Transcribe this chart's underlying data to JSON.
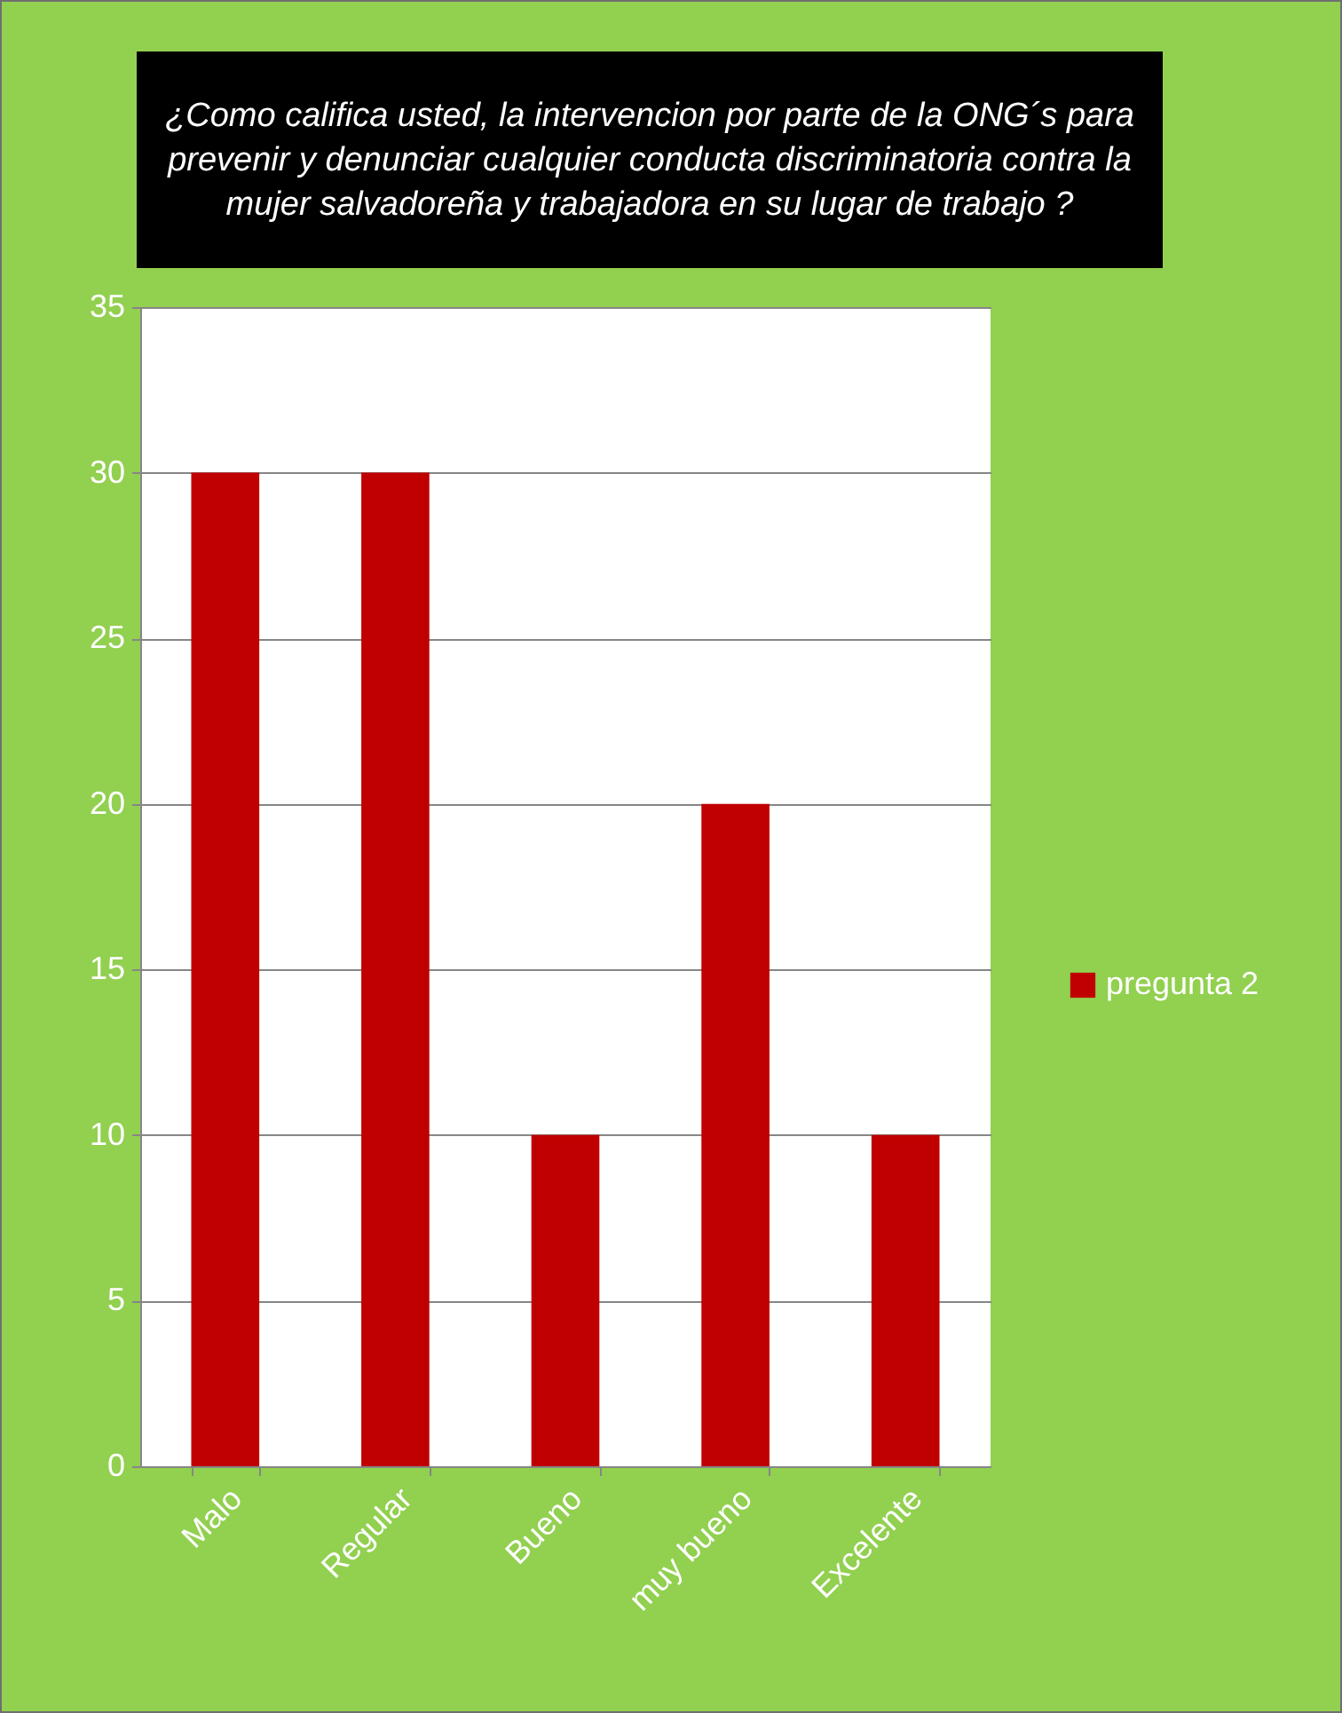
{
  "chart_data": {
    "type": "bar",
    "title": "¿Como califica usted, la intervencion por parte de la ONG´s para prevenir y denunciar cualquier conducta discriminatoria contra la mujer salvadoreña y trabajadora en su lugar de trabajo ?",
    "categories": [
      "Malo",
      "Regular",
      "Bueno",
      "muy bueno",
      "Excelente"
    ],
    "series": [
      {
        "name": "pregunta 2",
        "color": "#c00000",
        "values": [
          30,
          30,
          10,
          20,
          10
        ]
      }
    ],
    "ylim": [
      0,
      35
    ],
    "yticks": [
      0,
      5,
      10,
      15,
      20,
      25,
      30,
      35
    ],
    "grid": "y",
    "legend": "right"
  }
}
